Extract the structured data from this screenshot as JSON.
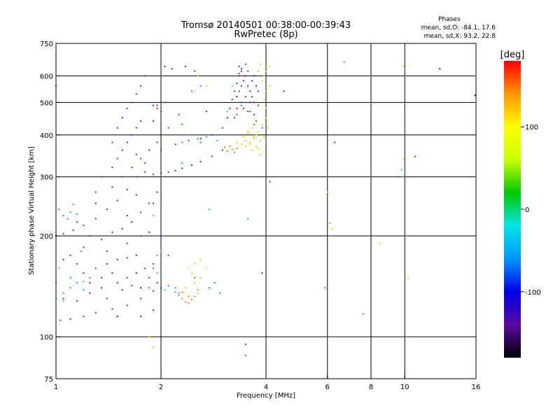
{
  "chart_data": {
    "type": "scatter",
    "title": "Tromsø 20140501 00:38:00-00:39:43",
    "subtitle": "RwPretec (8p)",
    "xlabel": "Frequency [MHz]",
    "ylabel": "Stationary phase Virtual Height [km]",
    "x_scale": "log",
    "y_scale": "log",
    "xlim": [
      1,
      16
    ],
    "ylim": [
      75,
      750
    ],
    "x_ticks": [
      1,
      2,
      4,
      6,
      8,
      10,
      16
    ],
    "y_ticks": [
      75,
      100,
      200,
      300,
      400,
      500,
      600,
      750
    ],
    "grid": true,
    "stats": {
      "heading": "Phases",
      "line1": "mean, sd,O: -84.1, 17.6",
      "line2": "mean, sd,X:  93.2, 22.8"
    },
    "colorbar": {
      "label": "[deg]",
      "min": -180,
      "max": 180,
      "ticks": [
        100,
        0,
        -100
      ],
      "tick_labels": [
        "100",
        "0",
        "-100"
      ],
      "colormap": [
        "#000000",
        "#5a0aa0",
        "#0000e8",
        "#0096ff",
        "#00e6e6",
        "#00c800",
        "#c8ff00",
        "#ffff00",
        "#ff9600",
        "#ff0000"
      ]
    },
    "series": [
      {
        "color": "#1e3cdc",
        "points": [
          [
            1.03,
            112
          ],
          [
            1.1,
            113
          ],
          [
            1.2,
            115
          ],
          [
            1.3,
            118
          ],
          [
            1.45,
            121
          ],
          [
            1.6,
            124
          ],
          [
            1.75,
            130
          ],
          [
            1.9,
            137
          ],
          [
            2.0,
            140
          ],
          [
            1.05,
            130
          ],
          [
            1.15,
            128
          ],
          [
            1.25,
            135
          ],
          [
            1.35,
            140
          ],
          [
            1.5,
            145
          ],
          [
            1.6,
            150
          ],
          [
            1.7,
            155
          ],
          [
            1.8,
            160
          ],
          [
            1.9,
            165
          ],
          [
            1.1,
            150
          ],
          [
            1.2,
            155
          ],
          [
            1.3,
            160
          ],
          [
            1.4,
            165
          ],
          [
            1.5,
            170
          ],
          [
            1.6,
            172
          ],
          [
            1.7,
            175
          ],
          [
            1.05,
            170
          ],
          [
            1.15,
            165
          ],
          [
            1.25,
            145
          ],
          [
            1.4,
            130
          ],
          [
            1.55,
            138
          ],
          [
            1.65,
            142
          ],
          [
            1.85,
            150
          ],
          [
            1.95,
            145
          ],
          [
            1.45,
            155
          ],
          [
            1.35,
            150
          ],
          [
            1.0,
            200
          ],
          [
            1.05,
            203
          ],
          [
            1.12,
            208
          ],
          [
            1.2,
            215
          ],
          [
            1.3,
            225
          ],
          [
            1.4,
            240
          ],
          [
            1.5,
            255
          ],
          [
            1.6,
            275
          ],
          [
            1.7,
            300
          ],
          [
            1.25,
            200
          ],
          [
            1.35,
            195
          ],
          [
            1.45,
            205
          ],
          [
            1.55,
            210
          ],
          [
            1.65,
            220
          ],
          [
            1.75,
            235
          ],
          [
            1.85,
            250
          ],
          [
            1.95,
            270
          ],
          [
            1.15,
            220
          ],
          [
            1.3,
            250
          ],
          [
            1.45,
            280
          ],
          [
            1.55,
            300
          ],
          [
            1.65,
            320
          ],
          [
            1.75,
            340
          ],
          [
            1.85,
            360
          ],
          [
            1.95,
            380
          ],
          [
            1.35,
            300
          ],
          [
            1.45,
            320
          ],
          [
            1.5,
            340
          ],
          [
            1.55,
            360
          ],
          [
            1.6,
            380
          ],
          [
            1.65,
            400
          ],
          [
            1.7,
            420
          ],
          [
            1.75,
            440
          ],
          [
            1.5,
            420
          ],
          [
            1.55,
            450
          ],
          [
            1.6,
            480
          ],
          [
            1.65,
            500
          ],
          [
            1.7,
            530
          ],
          [
            1.75,
            560
          ],
          [
            1.8,
            600
          ],
          [
            1.45,
            380
          ],
          [
            1.8,
            310
          ],
          [
            1.9,
            305
          ],
          [
            2.0,
            308
          ],
          [
            2.1,
            310
          ],
          [
            2.2,
            313
          ],
          [
            2.3,
            318
          ],
          [
            2.45,
            325
          ],
          [
            2.6,
            333
          ],
          [
            2.8,
            345
          ],
          [
            3.0,
            360
          ],
          [
            2.0,
            360
          ],
          [
            2.2,
            375
          ],
          [
            2.4,
            385
          ],
          [
            2.6,
            390
          ],
          [
            2.8,
            400
          ],
          [
            3.0,
            420
          ],
          [
            3.1,
            450
          ],
          [
            3.15,
            480
          ],
          [
            3.2,
            510
          ],
          [
            3.25,
            540
          ],
          [
            3.3,
            570
          ],
          [
            3.35,
            600
          ],
          [
            3.4,
            630
          ],
          [
            2.05,
            640
          ],
          [
            2.15,
            630
          ],
          [
            2.35,
            640
          ],
          [
            2.5,
            620
          ],
          [
            2.7,
            470
          ],
          [
            1.9,
            250
          ],
          [
            2.0,
            200
          ],
          [
            2.1,
            175
          ],
          [
            1.8,
            330
          ],
          [
            1.7,
            350
          ],
          [
            1.9,
            440
          ],
          [
            2.1,
            420
          ],
          [
            2.25,
            460
          ],
          [
            1.95,
            490
          ],
          [
            1.3,
            270
          ],
          [
            1.4,
            180
          ],
          [
            1.2,
            185
          ],
          [
            1.1,
            175
          ],
          [
            1.6,
            190
          ],
          [
            1.75,
            200
          ],
          [
            1.85,
            205
          ],
          [
            1.7,
            265
          ],
          [
            1.6,
            230
          ],
          [
            3.5,
            95
          ],
          [
            4.1,
            290
          ],
          [
            3.8,
            490
          ],
          [
            4.5,
            540
          ],
          [
            3.9,
            155
          ],
          [
            1.9,
            120
          ],
          [
            1.75,
            115
          ]
        ]
      },
      {
        "color": "#2a8cf0",
        "points": [
          [
            1.05,
            230
          ],
          [
            1.1,
            235
          ],
          [
            1.02,
            240
          ],
          [
            1.08,
            225
          ],
          [
            1.15,
            232
          ],
          [
            1.0,
            145
          ],
          [
            1.1,
            140
          ],
          [
            1.05,
            135
          ],
          [
            1.2,
            138
          ],
          [
            1.15,
            145
          ],
          [
            1.25,
            150
          ],
          [
            1.9,
            160
          ],
          [
            2.0,
            150
          ],
          [
            2.1,
            142
          ],
          [
            2.2,
            140
          ],
          [
            1.85,
            140
          ],
          [
            2.25,
            135
          ],
          [
            2.4,
            400
          ],
          [
            2.55,
            390
          ],
          [
            2.7,
            395
          ],
          [
            2.9,
            385
          ],
          [
            2.3,
            380
          ],
          [
            2.6,
            560
          ],
          [
            2.45,
            540
          ],
          [
            2.3,
            330
          ],
          [
            3.55,
            225
          ],
          [
            5.9,
            140
          ],
          [
            7.6,
            117
          ],
          [
            1.12,
            248
          ],
          [
            1.18,
            180
          ],
          [
            1.95,
            175
          ]
        ]
      },
      {
        "color": "#14d2d2",
        "points": [
          [
            1.0,
            130
          ],
          [
            1.05,
            128
          ],
          [
            1.1,
            150
          ],
          [
            1.2,
            146
          ],
          [
            1.95,
            155
          ],
          [
            2.05,
            138
          ],
          [
            2.2,
            136
          ],
          [
            2.0,
            180
          ],
          [
            1.9,
            230
          ],
          [
            2.75,
            240
          ],
          [
            3.1,
            470
          ],
          [
            3.3,
            520
          ],
          [
            3.2,
            560
          ],
          [
            9.8,
            315
          ],
          [
            9.9,
            300
          ],
          [
            1.02,
            160
          ]
        ]
      },
      {
        "color": "#00b41e",
        "points": [
          [
            2.3,
            430
          ],
          [
            2.6,
            380
          ],
          [
            3.8,
            400
          ],
          [
            3.9,
            420
          ],
          [
            3.75,
            440
          ],
          [
            2.75,
            140
          ],
          [
            2.85,
            145
          ],
          [
            2.95,
            135
          ],
          [
            3.5,
            88
          ],
          [
            3.3,
            460
          ],
          [
            3.4,
            490
          ],
          [
            3.6,
            470
          ],
          [
            3.7,
            430
          ],
          [
            2.5,
            150
          ]
        ]
      },
      {
        "color": "#c8e600",
        "points": [
          [
            3.6,
            380
          ],
          [
            3.7,
            390
          ],
          [
            3.8,
            410
          ],
          [
            3.9,
            430
          ],
          [
            4.0,
            450
          ],
          [
            3.5,
            370
          ],
          [
            3.65,
            360
          ],
          [
            3.75,
            370
          ],
          [
            3.85,
            385
          ],
          [
            3.95,
            395
          ],
          [
            4.05,
            420
          ],
          [
            4.0,
            480
          ],
          [
            3.95,
            510
          ],
          [
            4.0,
            540
          ],
          [
            3.9,
            580
          ],
          [
            4.0,
            620
          ],
          [
            3.85,
            650
          ],
          [
            3.95,
            600
          ],
          [
            4.1,
            560
          ],
          [
            3.45,
            395
          ],
          [
            3.55,
            410
          ],
          [
            2.55,
            600
          ],
          [
            2.7,
            560
          ],
          [
            8.5,
            190
          ],
          [
            2.5,
            165
          ],
          [
            2.6,
            170
          ],
          [
            2.7,
            160
          ],
          [
            10.2,
            150
          ],
          [
            9.9,
            340
          ],
          [
            4.1,
            640
          ],
          [
            3.8,
            620
          ]
        ]
      },
      {
        "color": "#ffc800",
        "points": [
          [
            3.5,
            385
          ],
          [
            3.6,
            375
          ],
          [
            3.7,
            395
          ],
          [
            3.8,
            365
          ],
          [
            3.4,
            375
          ],
          [
            3.3,
            380
          ],
          [
            3.55,
            405
          ],
          [
            3.65,
            420
          ],
          [
            2.45,
            155
          ],
          [
            2.5,
            145
          ],
          [
            2.55,
            135
          ],
          [
            2.6,
            150
          ],
          [
            2.4,
            160
          ],
          [
            2.35,
            140
          ],
          [
            3.75,
            400
          ],
          [
            3.85,
            350
          ],
          [
            6.2,
            210
          ],
          [
            6.0,
            270
          ],
          [
            9.9,
            640
          ],
          [
            1.85,
            100
          ],
          [
            1.9,
            93
          ]
        ]
      },
      {
        "color": "#ff7800",
        "points": [
          [
            2.3,
            130
          ],
          [
            2.35,
            127
          ],
          [
            2.4,
            126
          ],
          [
            2.45,
            129
          ],
          [
            2.5,
            132
          ],
          [
            2.55,
            138
          ],
          [
            2.25,
            133
          ],
          [
            2.3,
            136
          ],
          [
            2.4,
            132
          ],
          [
            3.0,
            362
          ],
          [
            3.1,
            358
          ],
          [
            3.2,
            362
          ],
          [
            3.3,
            365
          ],
          [
            3.15,
            370
          ],
          [
            3.05,
            368
          ],
          [
            6.7,
            660
          ],
          [
            6.1,
            218
          ],
          [
            3.25,
            355
          ]
        ]
      },
      {
        "color": "#e61414",
        "points": [
          [
            1.9,
            490
          ],
          [
            1.95,
            480
          ],
          [
            2.0,
            470
          ],
          [
            3.35,
            610
          ],
          [
            3.45,
            600
          ],
          [
            3.55,
            620
          ],
          [
            6.3,
            380
          ],
          [
            10.7,
            345
          ],
          [
            1.0,
            560
          ],
          [
            2.05,
            500
          ]
        ]
      },
      {
        "color": "#6e14b4",
        "points": [
          [
            3.3,
            520
          ],
          [
            3.35,
            540
          ],
          [
            3.4,
            560
          ],
          [
            3.45,
            580
          ],
          [
            3.5,
            600
          ],
          [
            3.55,
            560
          ],
          [
            3.6,
            540
          ],
          [
            3.5,
            520
          ],
          [
            3.65,
            580
          ],
          [
            3.7,
            600
          ],
          [
            3.75,
            560
          ],
          [
            3.4,
            500
          ],
          [
            3.45,
            480
          ],
          [
            3.6,
            500
          ],
          [
            3.55,
            470
          ],
          [
            3.65,
            520
          ],
          [
            3.7,
            500
          ],
          [
            3.3,
            480
          ],
          [
            3.8,
            540
          ],
          [
            3.35,
            640
          ],
          [
            3.5,
            650
          ],
          [
            3.25,
            450
          ],
          [
            3.7,
            460
          ],
          [
            3.4,
            620
          ]
        ]
      },
      {
        "color": "#141e8c",
        "points": [
          [
            12.6,
            630
          ],
          [
            15.9,
            525
          ],
          [
            1.75,
            140
          ],
          [
            1.5,
            115
          ]
        ]
      }
    ]
  }
}
